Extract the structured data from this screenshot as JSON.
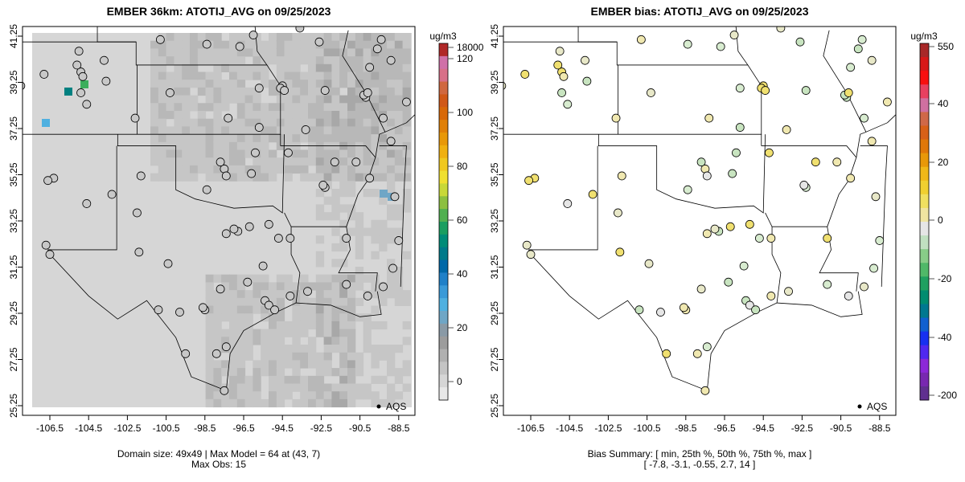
{
  "panels": [
    {
      "title": "EMBER 36km: ATOTIJ_AVG on 09/25/2023",
      "colorbar": {
        "unit": "ug/m3",
        "ticks": [
          "18000",
          "120",
          "100",
          "80",
          "60",
          "40",
          "20",
          "0"
        ],
        "colors": [
          "#e8e8e8",
          "#d6d6d6",
          "#c4c4c4",
          "#b0b0b0",
          "#9c9c9c",
          "#8a9aa6",
          "#6fa6c6",
          "#4fb0e0",
          "#3a9ad8",
          "#1f80c8",
          "#0068a8",
          "#007a8a",
          "#008c78",
          "#1a9e60",
          "#50b050",
          "#8cc040",
          "#c8d838",
          "#f0e030",
          "#f0c820",
          "#f0b010",
          "#e89808",
          "#e08008",
          "#d86808",
          "#d05818",
          "#d06840",
          "#d87088",
          "#d070a8",
          "#b02828"
        ]
      },
      "footer": [
        "Domain size: 49x49 | Max Model = 64 at (43, 7)",
        "Max Obs: 15"
      ]
    },
    {
      "title": "EMBER bias: ATOTIJ_AVG on 09/25/2023",
      "colorbar": {
        "unit": "ug/m3",
        "ticks": [
          "550",
          "40",
          "20",
          "0",
          "-20",
          "-40",
          "-200"
        ],
        "colors": [
          "#603090",
          "#7828b0",
          "#8c28d8",
          "#5028f0",
          "#1830f0",
          "#1060d0",
          "#007890",
          "#008c70",
          "#20a060",
          "#50b868",
          "#88cc88",
          "#c0e0c0",
          "#e6e6e6",
          "#f0e4a0",
          "#f0e060",
          "#f0d030",
          "#f0b818",
          "#e89808",
          "#e07808",
          "#d86018",
          "#d06848",
          "#d070a0",
          "#e84060",
          "#f81010",
          "#d81818",
          "#a82828"
        ]
      },
      "footer": [
        "Bias Summary: [ min, 25th %, 50th %, 75th %, max ]",
        "[ -7.8,   -3.1,   -0.55,   2.7,   14 ]"
      ]
    }
  ],
  "x_ticks": [
    "-106.5",
    "-104.5",
    "-102.5",
    "-100.5",
    "-98.5",
    "-96.5",
    "-94.5",
    "-92.5",
    "-90.5",
    "-88.5"
  ],
  "y_ticks": [
    "41.25",
    "39.25",
    "37.25",
    "35.25",
    "33.25",
    "31.25",
    "29.25",
    "27.25",
    "25.25"
  ],
  "legend_label": "AQS"
}
